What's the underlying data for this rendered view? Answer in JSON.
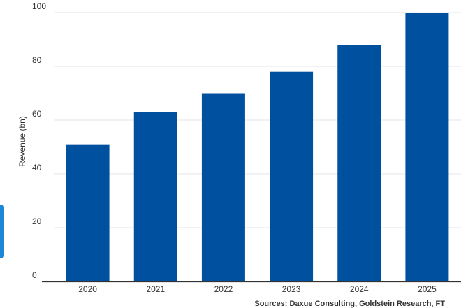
{
  "chart_data": {
    "type": "bar",
    "categories": [
      "2020",
      "2021",
      "2022",
      "2023",
      "2024",
      "2025"
    ],
    "series": [
      {
        "values": [
          51,
          63,
          70,
          78,
          88,
          100
        ]
      }
    ],
    "title": "",
    "xlabel": "",
    "ylabel": "Revenue (bn)",
    "ylim": [
      0,
      100
    ],
    "yticks": [
      0,
      20,
      40,
      60,
      80,
      100
    ],
    "grid": true,
    "legend": "none",
    "bar_color": "#0050a0",
    "source": "Sources: Daxue Consulting, Goldstein Research, FT"
  }
}
